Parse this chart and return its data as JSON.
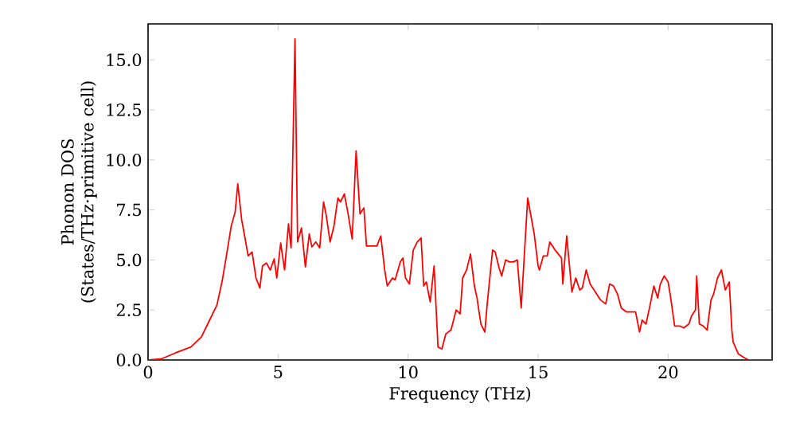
{
  "chart_data": {
    "type": "line",
    "xlabel": "Frequency (THz)",
    "ylabel": "Phonon DOS (States/THz·primitive cell)",
    "xlim": [
      0,
      24
    ],
    "ylim": [
      0,
      16.8
    ],
    "xticks": [
      0,
      5,
      10,
      15,
      20
    ],
    "yticks": [
      {
        "value": 0,
        "label": "0.0"
      },
      {
        "value": 2.5,
        "label": "2.5"
      },
      {
        "value": 5,
        "label": "5.0"
      },
      {
        "value": 7.5,
        "label": "7.5"
      },
      {
        "value": 10,
        "label": "10.0"
      },
      {
        "value": 12.5,
        "label": "12.5"
      },
      {
        "value": 15,
        "label": "15.0"
      }
    ],
    "grid": false,
    "marker": "none",
    "line_style": "solid",
    "series": [
      {
        "color": "#ff0000",
        "x": [
          0,
          0.5,
          1.05,
          1.65,
          2.05,
          2.35,
          2.65,
          2.85,
          3.05,
          3.2,
          3.35,
          3.45,
          3.6,
          3.7,
          3.85,
          4.0,
          4.15,
          4.3,
          4.4,
          4.55,
          4.7,
          4.85,
          4.95,
          5.1,
          5.25,
          5.4,
          5.5,
          5.65,
          5.75,
          5.9,
          6.05,
          6.2,
          6.3,
          6.45,
          6.6,
          6.75,
          6.85,
          7.0,
          7.15,
          7.3,
          7.4,
          7.55,
          7.7,
          7.85,
          8.0,
          8.15,
          8.3,
          8.4,
          8.8,
          8.95,
          9.1,
          9.2,
          9.4,
          9.5,
          9.7,
          9.8,
          9.9,
          10.05,
          10.2,
          10.35,
          10.5,
          10.6,
          10.7,
          10.85,
          11.0,
          11.15,
          11.3,
          11.45,
          11.65,
          11.85,
          12.0,
          12.1,
          12.25,
          12.4,
          12.55,
          12.65,
          12.8,
          12.95,
          13.05,
          13.25,
          13.35,
          13.5,
          13.6,
          13.75,
          13.9,
          14.05,
          14.2,
          14.35,
          14.6,
          14.85,
          15.0,
          15.05,
          15.2,
          15.35,
          15.45,
          15.65,
          15.9,
          15.95,
          16.1,
          16.3,
          16.45,
          16.6,
          16.7,
          16.85,
          17.0,
          17.2,
          17.4,
          17.6,
          17.75,
          17.9,
          18.05,
          18.2,
          18.4,
          18.75,
          18.9,
          19.0,
          19.15,
          19.3,
          19.45,
          19.6,
          19.7,
          19.85,
          20.0,
          20.1,
          20.25,
          20.45,
          20.6,
          20.8,
          20.9,
          21.05,
          21.1,
          21.2,
          21.35,
          21.5,
          21.65,
          21.75,
          21.9,
          22.05,
          22.2,
          22.35,
          22.45,
          22.5,
          22.7,
          22.95,
          23.1,
          24
        ],
        "values": [
          0,
          0.05,
          0.35,
          0.65,
          1.15,
          1.95,
          2.75,
          3.95,
          5.5,
          6.7,
          7.4,
          8.8,
          7.0,
          6.3,
          5.2,
          5.4,
          4.1,
          3.6,
          4.7,
          4.85,
          4.5,
          5.05,
          4.1,
          5.85,
          4.5,
          6.8,
          5.6,
          16.05,
          5.9,
          6.6,
          4.65,
          6.3,
          5.65,
          5.9,
          5.6,
          7.9,
          7.25,
          5.9,
          6.7,
          8.1,
          7.9,
          8.3,
          7.25,
          6.05,
          10.45,
          7.3,
          7.6,
          5.7,
          5.7,
          6.2,
          4.5,
          3.7,
          4.1,
          4.0,
          4.9,
          5.1,
          4.1,
          3.8,
          5.5,
          5.9,
          6.1,
          3.7,
          3.9,
          2.9,
          4.7,
          0.65,
          0.55,
          1.3,
          1.5,
          2.5,
          2.3,
          4.1,
          4.5,
          5.3,
          3.7,
          3.1,
          1.8,
          1.4,
          2.9,
          5.5,
          5.4,
          4.6,
          4.2,
          5.0,
          4.9,
          4.9,
          5.0,
          2.6,
          8.1,
          6.3,
          4.7,
          4.5,
          5.2,
          5.2,
          5.9,
          5.5,
          5.1,
          3.8,
          6.2,
          3.4,
          4.1,
          3.5,
          3.6,
          4.5,
          3.8,
          3.4,
          3.0,
          2.8,
          3.8,
          3.7,
          3.3,
          2.6,
          2.4,
          2.4,
          1.4,
          2.0,
          1.8,
          2.7,
          3.7,
          3.1,
          3.8,
          4.2,
          3.9,
          3.1,
          1.7,
          1.7,
          1.6,
          1.8,
          2.2,
          2.5,
          4.2,
          1.8,
          1.7,
          1.5,
          3.0,
          3.3,
          4.1,
          4.5,
          3.5,
          3.9,
          1.5,
          0.9,
          0.3,
          0.1,
          0,
          0
        ]
      }
    ]
  }
}
